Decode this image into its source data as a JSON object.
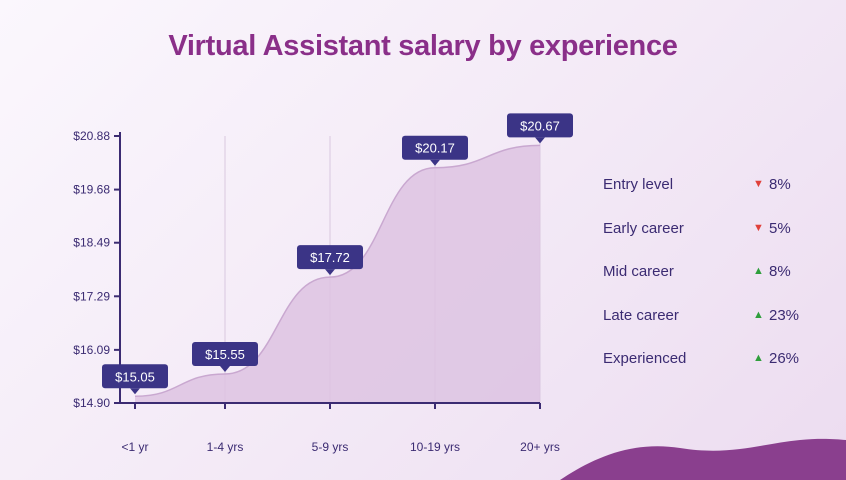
{
  "chart_data": {
    "type": "area",
    "title": "Virtual Assistant salary by experience",
    "categories": [
      "<1 yr",
      "1-4 yrs",
      "5-9 yrs",
      "10-19 yrs",
      "20+ yrs"
    ],
    "values": [
      15.05,
      15.55,
      17.72,
      20.17,
      20.67
    ],
    "data_labels": [
      "$15.05",
      "$15.55",
      "$17.72",
      "$20.17",
      "$20.67"
    ],
    "y_ticks": [
      "$14.90",
      "$16.09",
      "$17.29",
      "$18.49",
      "$19.68",
      "$20.88"
    ],
    "y_tick_values": [
      14.9,
      16.09,
      17.29,
      18.49,
      19.68,
      20.88
    ],
    "ylim": [
      14.9,
      20.88
    ],
    "grid": "vertical",
    "colors": {
      "fill": "#ddc3e2",
      "line": "#c9a8d0",
      "axis": "#3b2b72",
      "label_bg": "#3b3486",
      "title": "#8a2f89"
    }
  },
  "legend": {
    "items": [
      {
        "name": "Entry level",
        "direction": "down",
        "arrow": "▼",
        "pct": "8%"
      },
      {
        "name": "Early career",
        "direction": "down",
        "arrow": "▼",
        "pct": "5%"
      },
      {
        "name": "Mid career",
        "direction": "up",
        "arrow": "▲",
        "pct": "8%"
      },
      {
        "name": "Late career",
        "direction": "up",
        "arrow": "▲",
        "pct": "23%"
      },
      {
        "name": "Experienced",
        "direction": "up",
        "arrow": "▲",
        "pct": "26%"
      }
    ]
  }
}
